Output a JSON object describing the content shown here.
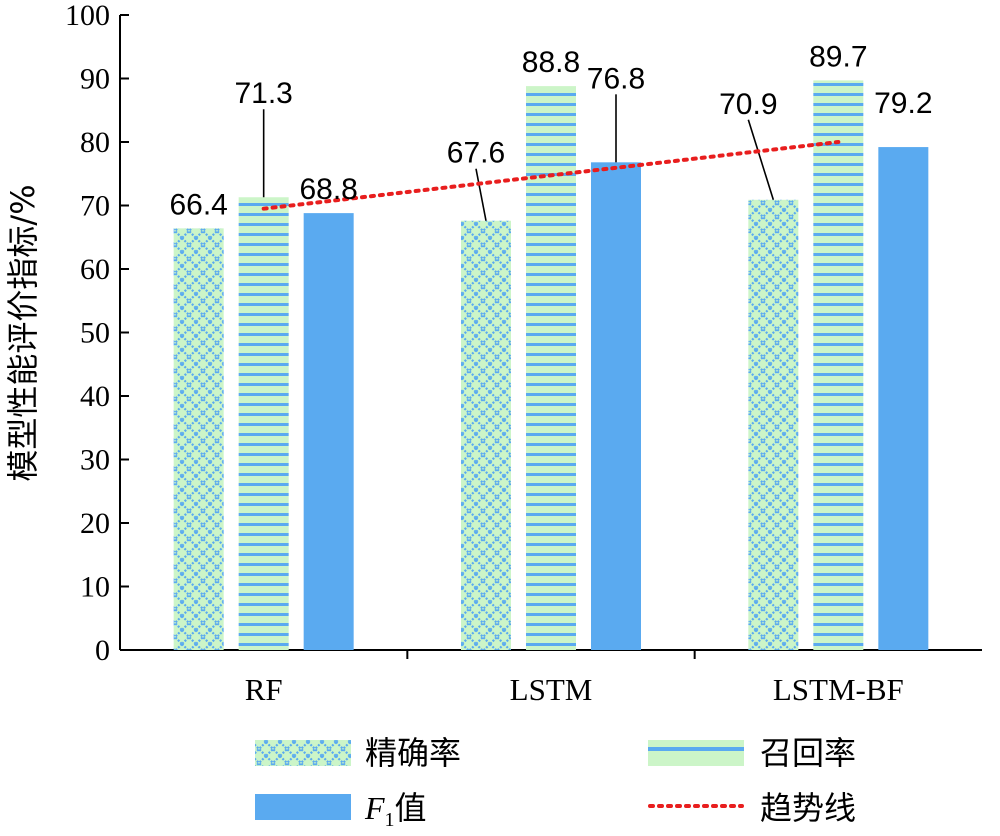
{
  "chart_data": {
    "type": "bar",
    "ylabel": "模型性能评价指标/%",
    "ylim": [
      0,
      100
    ],
    "yticks": [
      0,
      10,
      20,
      30,
      40,
      50,
      60,
      70,
      80,
      90,
      100
    ],
    "categories": [
      "RF",
      "LSTM",
      "LSTM-BF"
    ],
    "series": [
      {
        "name": "精确率",
        "values": [
          66.4,
          67.6,
          70.9
        ],
        "color": "#5aaaf0",
        "fill_color": "#ccf5c8",
        "pattern": "crosshatch"
      },
      {
        "name": "召回率",
        "values": [
          71.3,
          88.8,
          89.7
        ],
        "color": "#5aaaf0",
        "fill_color": "#ccf5c8",
        "pattern": "horizontal-lines"
      },
      {
        "name": "F1值",
        "name_parts": [
          "F",
          "1",
          "值"
        ],
        "values": [
          68.8,
          76.8,
          79.2
        ],
        "color": "#5aaaf0",
        "pattern": "solid"
      }
    ],
    "trendline": {
      "name": "趋势线",
      "color": "#e81e1e",
      "style": "dotted",
      "y_start": 69.5,
      "y_end": 80
    },
    "grid": false,
    "legend_position": "bottom"
  }
}
